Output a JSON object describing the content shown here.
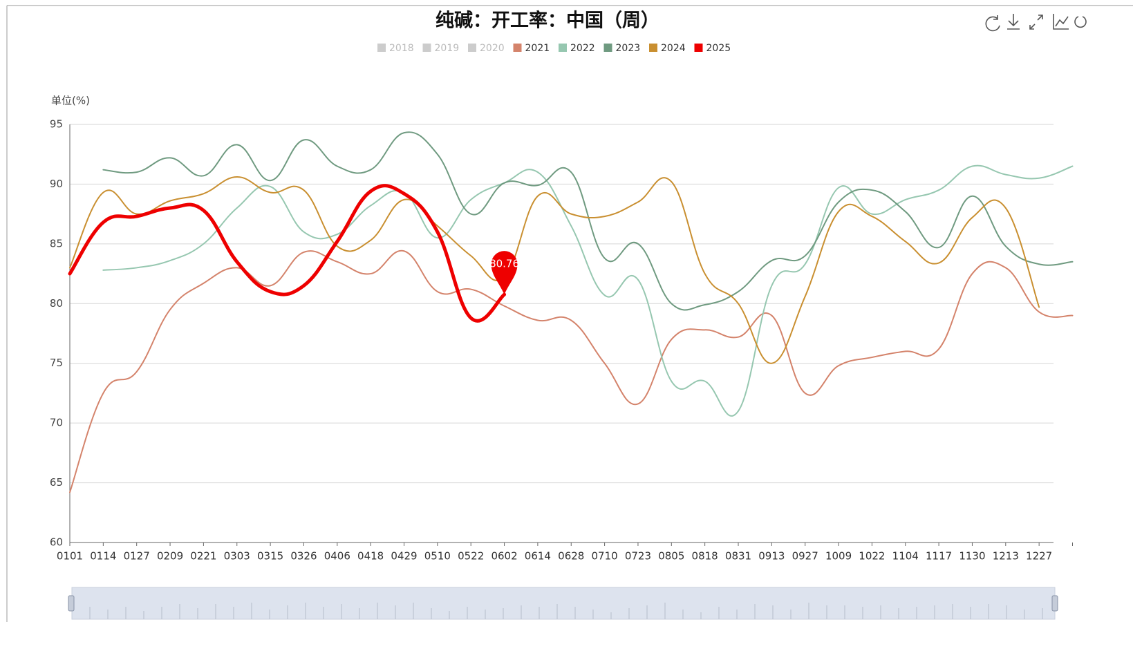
{
  "chart_data": {
    "type": "line",
    "title": "纯碱：开工率：中国（周）",
    "y_axis_label": "单位(%)",
    "categories": [
      "0101",
      "0114",
      "0127",
      "0209",
      "0221",
      "0303",
      "0315",
      "0326",
      "0406",
      "0418",
      "0429",
      "0510",
      "0522",
      "0602",
      "0614",
      "0628",
      "0710",
      "0723",
      "0805",
      "0818",
      "0831",
      "0913",
      "0927",
      "1009",
      "1022",
      "1104",
      "1117",
      "1130",
      "1213",
      "1227",
      null
    ],
    "series": [
      {
        "name": "2018",
        "color": "#cccccc",
        "visible": false
      },
      {
        "name": "2019",
        "color": "#cccccc",
        "visible": false
      },
      {
        "name": "2020",
        "color": "#cccccc",
        "visible": false
      },
      {
        "name": "2021",
        "color": "#d4836b",
        "visible": true,
        "width": 2,
        "values": [
          64.2,
          72.5,
          74.3,
          79.5,
          81.7,
          83,
          81.5,
          84.3,
          83.5,
          82.5,
          84.4,
          81,
          81.2,
          79.8,
          78.6,
          78.6,
          75,
          71.6,
          77,
          77.8,
          77.2,
          79,
          72.5,
          74.8,
          75.5,
          76,
          76.2,
          82.5,
          83,
          79.3,
          79
        ]
      },
      {
        "name": "2022",
        "color": "#96c7b0",
        "visible": true,
        "width": 2,
        "values": [
          null,
          82.8,
          83,
          83.6,
          85,
          88,
          89.8,
          86,
          85.8,
          88.2,
          89.3,
          85.5,
          88.7,
          90.1,
          91,
          86.5,
          80.7,
          82,
          73.5,
          73.5,
          71,
          81.5,
          83.3,
          89.7,
          87.5,
          88.7,
          89.5,
          91.5,
          90.8,
          90.5,
          91.5
        ]
      },
      {
        "name": "2023",
        "color": "#6f9a80",
        "visible": true,
        "width": 2,
        "values": [
          null,
          91.2,
          91,
          92.2,
          90.7,
          93.3,
          90.3,
          93.7,
          91.5,
          91.2,
          94.3,
          92.5,
          87.5,
          90.1,
          89.9,
          91,
          83.8,
          85,
          80,
          79.9,
          81,
          83.6,
          84,
          88.5,
          89.5,
          87.7,
          84.7,
          89,
          84.8,
          83.3,
          83.5
        ]
      },
      {
        "name": "2024",
        "color": "#c98f30",
        "visible": true,
        "width": 2,
        "values": [
          83,
          89.3,
          87.5,
          88.6,
          89.2,
          90.6,
          89.3,
          89.5,
          84.8,
          85.3,
          88.7,
          86.5,
          84,
          82.2,
          89,
          87.5,
          87.3,
          88.5,
          90.2,
          82.5,
          80,
          75,
          80.6,
          87.7,
          87.3,
          85.2,
          83.4,
          87.2,
          88,
          79.7,
          null
        ]
      },
      {
        "name": "2025",
        "color": "#ee0000",
        "visible": true,
        "width": 5,
        "values": [
          82.5,
          86.8,
          87.3,
          88,
          87.8,
          83.5,
          81,
          81.5,
          85.2,
          89.4,
          89.2,
          86,
          78.8,
          80.76,
          null,
          null,
          null,
          null,
          null,
          null,
          null,
          null,
          null,
          null,
          null,
          null,
          null,
          null,
          null,
          null,
          null
        ]
      }
    ],
    "mark_point": {
      "series": 7,
      "index": 13
    },
    "ylim": [
      60,
      95
    ],
    "yticks": [
      60,
      65,
      70,
      75,
      80,
      85,
      90,
      95
    ],
    "grid": true
  }
}
